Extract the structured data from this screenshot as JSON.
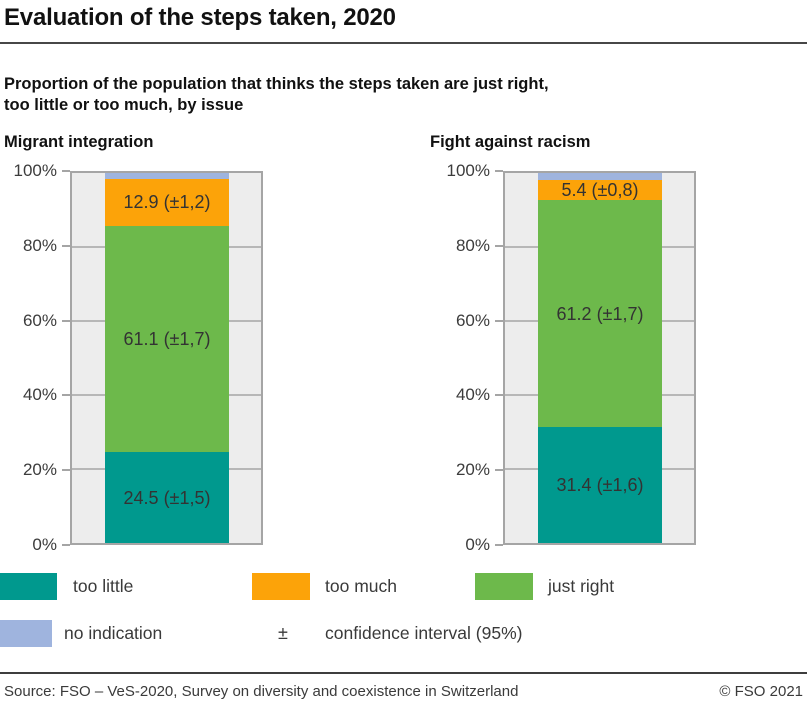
{
  "header": {
    "title": "Evaluation of the steps taken, 2020",
    "subtitle_line1": "Proportion of the population that thinks the steps taken are just right,",
    "subtitle_line2": "too little or too much, by issue"
  },
  "chart_data": {
    "type": "bar",
    "subtype": "stacked-vertical-percentage",
    "unit": "%",
    "ylim": [
      0,
      100
    ],
    "grid": true,
    "y_ticks": [
      "0%",
      "20%",
      "40%",
      "60%",
      "80%",
      "100%"
    ],
    "charts": [
      {
        "title": "Migrant integration",
        "segments": [
          {
            "name": "too little",
            "value": 24.5,
            "ci": 1.5,
            "label": "24.5 (±1,5)",
            "color": "#00998e"
          },
          {
            "name": "just right",
            "value": 61.1,
            "ci": 1.7,
            "label": "61.1 (±1,7)",
            "color": "#6db94b"
          },
          {
            "name": "too much",
            "value": 12.9,
            "ci": 1.2,
            "label": "12.9 (±1,2)",
            "color": "#fca309"
          },
          {
            "name": "no indication",
            "value": 1.5,
            "label": "",
            "color": "#9fb4de"
          }
        ]
      },
      {
        "title": "Fight against racism",
        "segments": [
          {
            "name": "too little",
            "value": 31.4,
            "ci": 1.6,
            "label": "31.4 (±1,6)",
            "color": "#00998e"
          },
          {
            "name": "just right",
            "value": 61.2,
            "ci": 1.7,
            "label": "61.2 (±1,7)",
            "color": "#6db94b"
          },
          {
            "name": "too much",
            "value": 5.4,
            "ci": 0.8,
            "label": "5.4 (±0,8)",
            "color": "#fca309"
          },
          {
            "name": "no indication",
            "value": 2.0,
            "label": "",
            "color": "#9fb4de"
          }
        ]
      }
    ],
    "legend": [
      {
        "label": "too little",
        "color": "#00998e"
      },
      {
        "label": "too much",
        "color": "#fca309"
      },
      {
        "label": "just right",
        "color": "#6db94b"
      },
      {
        "label": "no indication",
        "color": "#9fb4de"
      },
      {
        "symbol": "±",
        "label": "confidence interval (95%)"
      }
    ],
    "legend_position": "bottom"
  },
  "footer": {
    "source": "Source: FSO – VeS-2020, Survey on diversity and coexistence in Switzerland",
    "copyright": "© FSO 2021"
  }
}
